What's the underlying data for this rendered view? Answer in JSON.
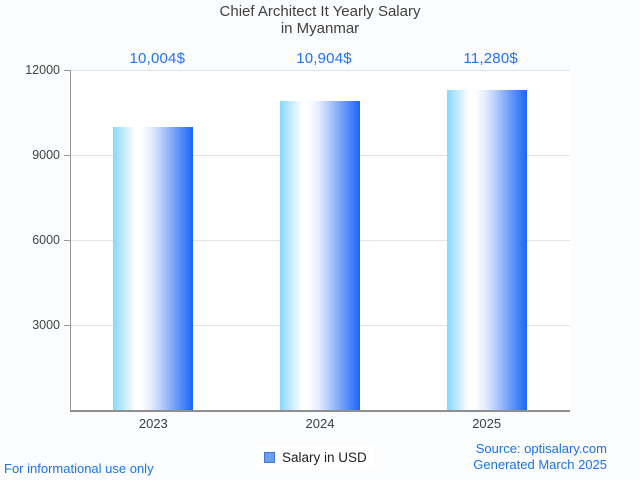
{
  "title_lines": [
    "Chief Architect It Yearly Salary",
    "in Myanmar"
  ],
  "chart_data": {
    "type": "bar",
    "title": "Chief Architect It Yearly Salary in Myanmar",
    "categories": [
      "2023",
      "2024",
      "2025"
    ],
    "series": [
      {
        "name": "Salary in USD",
        "values": [
          10004,
          10904,
          11280
        ]
      }
    ],
    "value_labels": [
      "10,004$",
      "10,904$",
      "11,280$"
    ],
    "yticks": [
      3000,
      6000,
      9000,
      12000
    ],
    "ytick_labels": [
      "3000",
      "6000",
      "9000",
      "12000"
    ],
    "ylim": [
      0,
      12000
    ],
    "grid": true,
    "legend_position": "bottom",
    "xlabel": "",
    "ylabel": ""
  },
  "legend": {
    "label": "Salary in USD"
  },
  "footer": {
    "left": "For informational use only",
    "source": "Source: optisalary.com",
    "generated": "Generated March 2025"
  },
  "colors": {
    "value_label": "#2173f2",
    "footer_link": "#1a73e8",
    "bar_gradient_start": "#87d7fd",
    "bar_gradient_mid": "#ffffff",
    "bar_gradient_end": "#1a66fb",
    "grid": "#e2e4e8",
    "axis": "#979797",
    "title": "#404040",
    "tick_text": "#444444",
    "plot_background": "#ffffff",
    "page_background": "#fafcfe"
  }
}
